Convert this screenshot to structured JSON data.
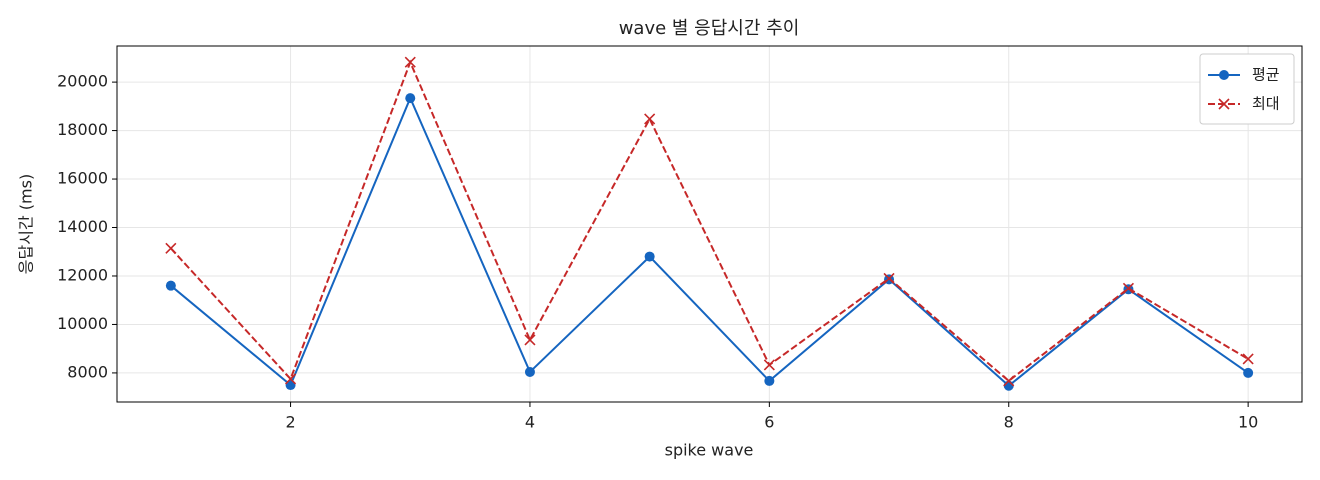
{
  "chart_data": {
    "type": "line",
    "title": "wave 별 응답시간 추이",
    "x_label": "spike wave",
    "y_label": "응답시간 (ms)",
    "x": [
      1,
      2,
      3,
      4,
      5,
      6,
      7,
      8,
      9,
      10
    ],
    "series": [
      {
        "name": "평균",
        "color": "#1565c0",
        "linestyle": "solid",
        "marker": "o",
        "values": [
          11600,
          7500,
          19340,
          8040,
          12800,
          7670,
          11860,
          7470,
          11450,
          8000
        ]
      },
      {
        "name": "최대",
        "color": "#c62828",
        "linestyle": "dashed",
        "marker": "x",
        "values": [
          13140,
          7750,
          20820,
          9360,
          18480,
          8330,
          11900,
          7670,
          11490,
          8575
        ]
      }
    ],
    "xlim": [
      0.55,
      10.45
    ],
    "xticks": [
      2,
      4,
      6,
      8,
      10
    ],
    "ylim": [
      6800,
      21490
    ],
    "yticks": [
      8000,
      10000,
      12000,
      14000,
      16000,
      18000,
      20000
    ],
    "grid": true,
    "legend": "upper right"
  }
}
